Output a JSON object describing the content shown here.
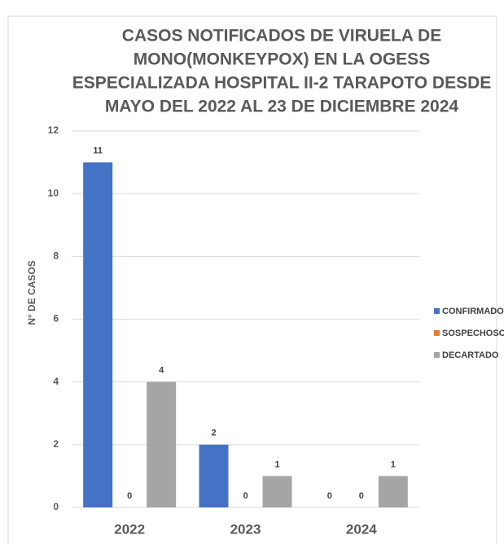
{
  "chart_data": {
    "type": "bar",
    "title": [
      "CASOS NOTIFICADOS DE VIRUELA DE",
      "MONO(MONKEYPOX) EN LA OGESS",
      "ESPECIALIZADA HOSPITAL II-2 TARAPOTO DESDE",
      "MAYO  DEL 2022 AL  23 DE DICIEMBRE 2024"
    ],
    "y_label": "N° DE CASOS",
    "categories": [
      "2022",
      "2023",
      "2024"
    ],
    "series": [
      {
        "name": "CONFIRMADO",
        "color": "#4472c4",
        "values": [
          11,
          2,
          0
        ]
      },
      {
        "name": "SOSPECHOSO",
        "color": "#ed7d31",
        "values": [
          0,
          0,
          0
        ]
      },
      {
        "name": "DECARTADO",
        "color": "#a5a5a5",
        "values": [
          4,
          1,
          1
        ]
      }
    ],
    "ylim": [
      0,
      12
    ],
    "yticks": [
      0,
      2,
      4,
      6,
      8,
      10,
      12
    ],
    "grid": true,
    "legend": "right"
  }
}
